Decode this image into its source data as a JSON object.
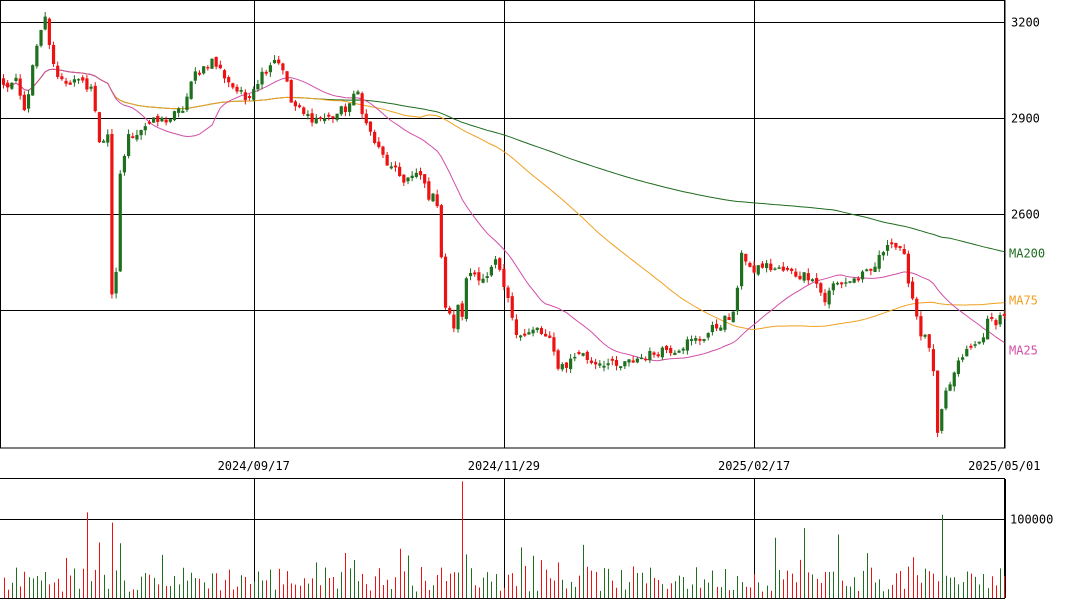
{
  "colors": {
    "up": "#1e6f1e",
    "down": "#ee1111",
    "ma25": "#d24ea8",
    "ma75": "#f0a020",
    "ma200": "#1f6b1f",
    "grid": "#000000",
    "axis_text": "#000000"
  },
  "chart_data": [
    {
      "type": "candlestick",
      "title": "",
      "y_ticks": [
        3200,
        2900,
        2600
      ],
      "ylim": [
        1870,
        3270
      ],
      "x_tick_labels": [
        "2024/09/17",
        "2024/11/29",
        "2025/02/17",
        "2025/05/01"
      ],
      "x_tick_indices": [
        60,
        120,
        180,
        240
      ],
      "candle_count": 241,
      "grid": true,
      "ma_labels": {
        "ma25": "MA25",
        "ma75": "MA75",
        "ma200": "MA200"
      },
      "anchors": [
        [
          0,
          3000
        ],
        [
          3,
          3010
        ],
        [
          5,
          2920
        ],
        [
          8,
          3120
        ],
        [
          10,
          3210
        ],
        [
          12,
          3060
        ],
        [
          14,
          3020
        ],
        [
          18,
          3010
        ],
        [
          21,
          3000
        ],
        [
          23,
          2830
        ],
        [
          25,
          2660
        ],
        [
          28,
          2730
        ],
        [
          30,
          2840
        ],
        [
          34,
          2880
        ],
        [
          37,
          2890
        ],
        [
          40,
          2900
        ],
        [
          43,
          2930
        ],
        [
          46,
          3040
        ],
        [
          50,
          3080
        ],
        [
          52,
          3050
        ],
        [
          55,
          3000
        ],
        [
          58,
          2960
        ],
        [
          62,
          3040
        ],
        [
          65,
          3090
        ],
        [
          67,
          3060
        ],
        [
          69,
          2950
        ],
        [
          72,
          2910
        ],
        [
          75,
          2900
        ],
        [
          78,
          2900
        ],
        [
          82,
          2930
        ],
        [
          85,
          2980
        ],
        [
          87,
          2880
        ],
        [
          90,
          2800
        ],
        [
          93,
          2740
        ],
        [
          96,
          2710
        ],
        [
          100,
          2720
        ],
        [
          102,
          2660
        ],
        [
          104,
          2640
        ],
        [
          106,
          2310
        ],
        [
          108,
          2250
        ],
        [
          110,
          2360
        ],
        [
          112,
          2420
        ],
        [
          116,
          2400
        ],
        [
          118,
          2450
        ],
        [
          120,
          2370
        ],
        [
          123,
          2240
        ],
        [
          125,
          2220
        ],
        [
          128,
          2240
        ],
        [
          131,
          2200
        ],
        [
          133,
          2130
        ],
        [
          135,
          2130
        ],
        [
          138,
          2170
        ],
        [
          141,
          2140
        ],
        [
          144,
          2140
        ],
        [
          147,
          2120
        ],
        [
          149,
          2130
        ],
        [
          152,
          2150
        ],
        [
          155,
          2160
        ],
        [
          158,
          2180
        ],
        [
          161,
          2180
        ],
        [
          164,
          2200
        ],
        [
          167,
          2210
        ],
        [
          170,
          2240
        ],
        [
          173,
          2270
        ],
        [
          175,
          2280
        ],
        [
          177,
          2480
        ],
        [
          179,
          2420
        ],
        [
          182,
          2440
        ],
        [
          185,
          2430
        ],
        [
          188,
          2420
        ],
        [
          191,
          2410
        ],
        [
          194,
          2410
        ],
        [
          197,
          2330
        ],
        [
          199,
          2380
        ],
        [
          202,
          2390
        ],
        [
          205,
          2400
        ],
        [
          208,
          2420
        ],
        [
          210,
          2460
        ],
        [
          212,
          2520
        ],
        [
          214,
          2500
        ],
        [
          216,
          2460
        ],
        [
          218,
          2340
        ],
        [
          220,
          2230
        ],
        [
          222,
          2190
        ],
        [
          224,
          1910
        ],
        [
          226,
          2040
        ],
        [
          228,
          2100
        ],
        [
          230,
          2160
        ],
        [
          232,
          2180
        ],
        [
          234,
          2200
        ],
        [
          236,
          2260
        ],
        [
          238,
          2270
        ],
        [
          240,
          2290
        ]
      ],
      "spikes": [
        {
          "i": 24,
          "close": 2830
        },
        {
          "i": 25,
          "close": 2850
        },
        {
          "i": 26,
          "close": 2350
        },
        {
          "i": 27,
          "close": 2420
        },
        {
          "i": 110,
          "close": 2280
        },
        {
          "i": 177,
          "close": 2480
        },
        {
          "i": 223,
          "close": 2110
        }
      ],
      "volume": {
        "ylim": [
          0,
          150000
        ],
        "y_ticks": [
          100000
        ],
        "y_tick_labels": [
          "100000"
        ],
        "peaks": [
          {
            "i": 20,
            "value": 108000
          },
          {
            "i": 23,
            "value": 70000
          },
          {
            "i": 26,
            "value": 95000
          },
          {
            "i": 110,
            "value": 162000
          },
          {
            "i": 185,
            "value": 76000
          },
          {
            "i": 192,
            "value": 88000
          },
          {
            "i": 200,
            "value": 80000
          },
          {
            "i": 225,
            "value": 105000
          }
        ]
      }
    }
  ]
}
